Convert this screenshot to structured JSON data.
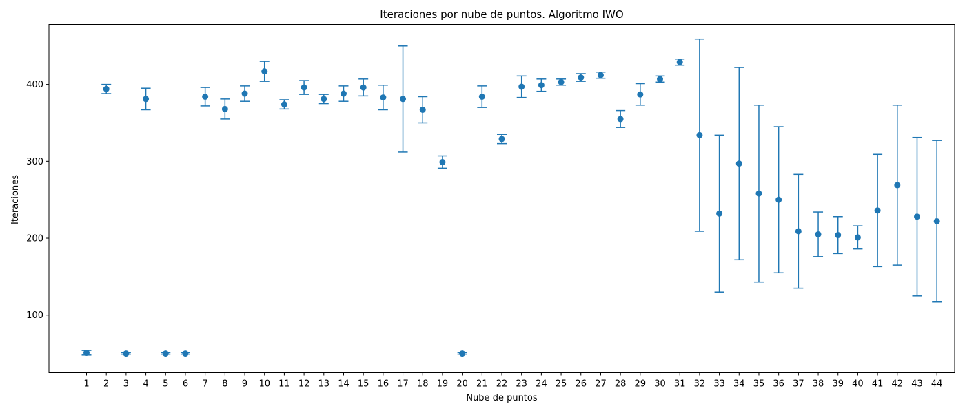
{
  "chart_data": {
    "type": "scatter",
    "title": "Iteraciones por nube de puntos. Algoritmo IWO",
    "xlabel": "Nube de puntos",
    "ylabel": "Iteraciones",
    "xlim": [
      -0.9,
      44.9
    ],
    "ylim": [
      25,
      478
    ],
    "x_ticks": [
      1,
      2,
      3,
      4,
      5,
      6,
      7,
      8,
      9,
      10,
      11,
      12,
      13,
      14,
      15,
      16,
      17,
      18,
      19,
      20,
      21,
      22,
      23,
      24,
      25,
      26,
      27,
      28,
      29,
      30,
      31,
      32,
      33,
      34,
      35,
      36,
      37,
      38,
      39,
      40,
      41,
      42,
      43,
      44
    ],
    "y_ticks": [
      100,
      200,
      300,
      400
    ],
    "grid": false,
    "color": "#1f77b4",
    "error_bars": true,
    "x": [
      1,
      2,
      3,
      4,
      5,
      6,
      7,
      8,
      9,
      10,
      11,
      12,
      13,
      14,
      15,
      16,
      17,
      18,
      19,
      20,
      21,
      22,
      23,
      24,
      25,
      26,
      27,
      28,
      29,
      30,
      31,
      32,
      33,
      34,
      35,
      36,
      37,
      38,
      39,
      40,
      41,
      42,
      43,
      44
    ],
    "y": [
      51,
      394,
      50,
      381,
      50,
      50,
      384,
      368,
      388,
      417,
      374,
      396,
      381,
      388,
      396,
      383,
      381,
      367,
      299,
      50,
      384,
      329,
      397,
      399,
      403,
      409,
      412,
      355,
      387,
      407,
      429,
      334,
      232,
      297,
      258,
      250,
      209,
      205,
      204,
      201,
      236,
      269,
      228,
      222
    ],
    "yerr": [
      3,
      6,
      1,
      14,
      1,
      1,
      12,
      13,
      10,
      13,
      6,
      9,
      6,
      10,
      11,
      16,
      69,
      17,
      8,
      1,
      14,
      6,
      14,
      8,
      4,
      5,
      4,
      11,
      14,
      4,
      4,
      125,
      102,
      125,
      115,
      95,
      74,
      29,
      24,
      15,
      73,
      104,
      103,
      105
    ]
  }
}
